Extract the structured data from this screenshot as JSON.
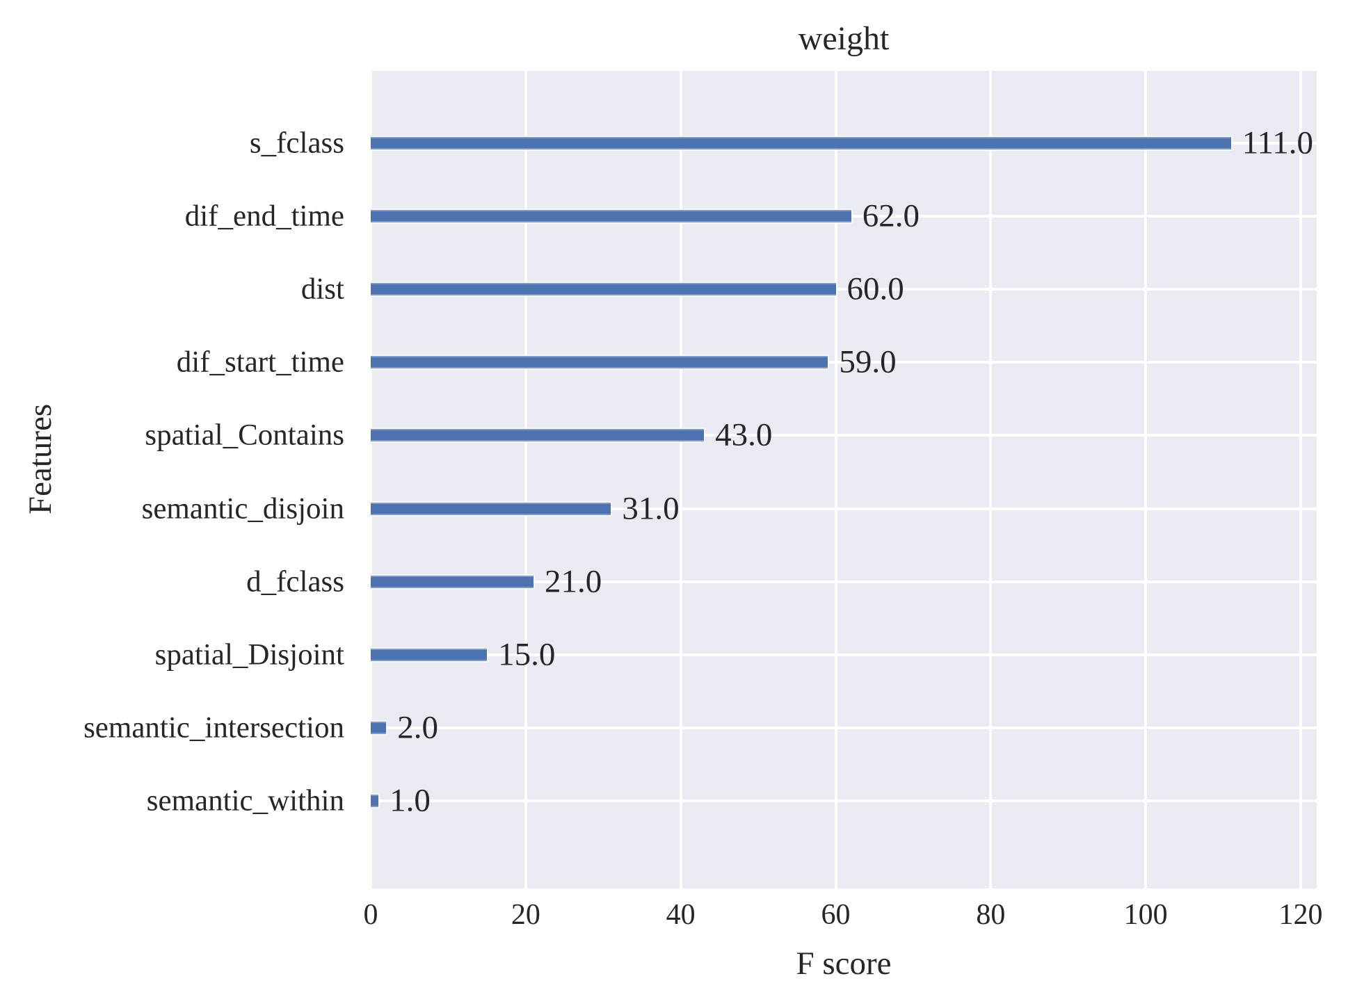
{
  "chart_data": {
    "type": "bar",
    "orientation": "horizontal",
    "title": "weight",
    "xlabel": "F score",
    "ylabel": "Features",
    "categories": [
      "s_fclass",
      "dif_end_time",
      "dist",
      "dif_start_time",
      "spatial_Contains",
      "semantic_disjoin",
      "d_fclass",
      "spatial_Disjoint",
      "semantic_intersection",
      "semantic_within"
    ],
    "values": [
      111.0,
      62.0,
      60.0,
      59.0,
      43.0,
      31.0,
      21.0,
      15.0,
      2.0,
      1.0
    ],
    "value_labels": [
      "111.0",
      "62.0",
      "60.0",
      "59.0",
      "43.0",
      "31.0",
      "21.0",
      "15.0",
      "2.0",
      "1.0"
    ],
    "x_ticks": [
      "0",
      "20",
      "40",
      "60",
      "80",
      "100",
      "120"
    ],
    "x_tick_values": [
      0,
      20,
      40,
      60,
      80,
      100,
      120
    ],
    "xlim": [
      0,
      122
    ],
    "grid": true,
    "legend": false,
    "style": "seaborn-darkgrid",
    "colors": {
      "bar": "#4C72B0",
      "plot_background": "#EAEAF2",
      "gridline": "#FFFFFF",
      "figure_background": "#FFFFFF",
      "text": "#262626"
    }
  }
}
